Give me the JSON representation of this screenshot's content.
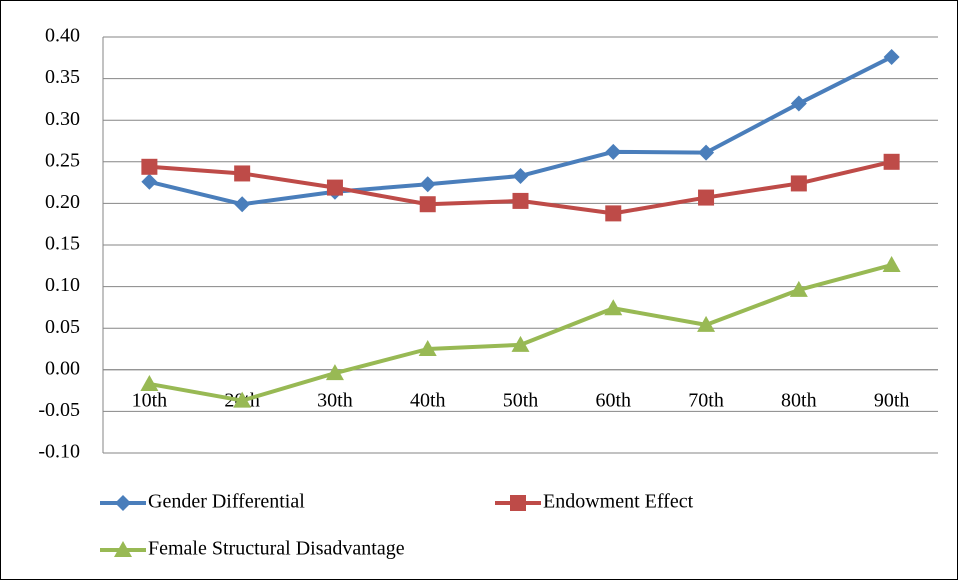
{
  "chart_data": {
    "type": "line",
    "categories": [
      "10th",
      "20th",
      "30th",
      "40th",
      "50th",
      "60th",
      "70th",
      "80th",
      "90th"
    ],
    "series": [
      {
        "name": "Gender Differential",
        "color": "#4a7ebb",
        "marker": "diamond",
        "values": [
          0.226,
          0.199,
          0.214,
          0.223,
          0.233,
          0.262,
          0.261,
          0.32,
          0.376
        ]
      },
      {
        "name": "Endowment Effect",
        "color": "#be4b48",
        "marker": "square",
        "values": [
          0.244,
          0.236,
          0.219,
          0.199,
          0.203,
          0.188,
          0.207,
          0.224,
          0.25
        ]
      },
      {
        "name": "Female Structural Disadvantage",
        "color": "#98b954",
        "marker": "triangle",
        "values": [
          -0.017,
          -0.037,
          -0.004,
          0.025,
          0.03,
          0.074,
          0.054,
          0.096,
          0.126
        ]
      }
    ],
    "ylim": [
      -0.1,
      0.4
    ],
    "yticks": [
      {
        "value": -0.1,
        "label": "-0.10"
      },
      -0.05,
      {
        "value": 0,
        "label": "0.00"
      },
      0.05,
      {
        "value": 0.1,
        "label": "0.10"
      },
      0.15,
      {
        "value": 0.2,
        "label": "0.20"
      },
      0.25,
      {
        "value": 0.3,
        "label": "0.30"
      },
      0.35,
      {
        "value": 0.4,
        "label": "0.40"
      }
    ],
    "grid": true
  }
}
